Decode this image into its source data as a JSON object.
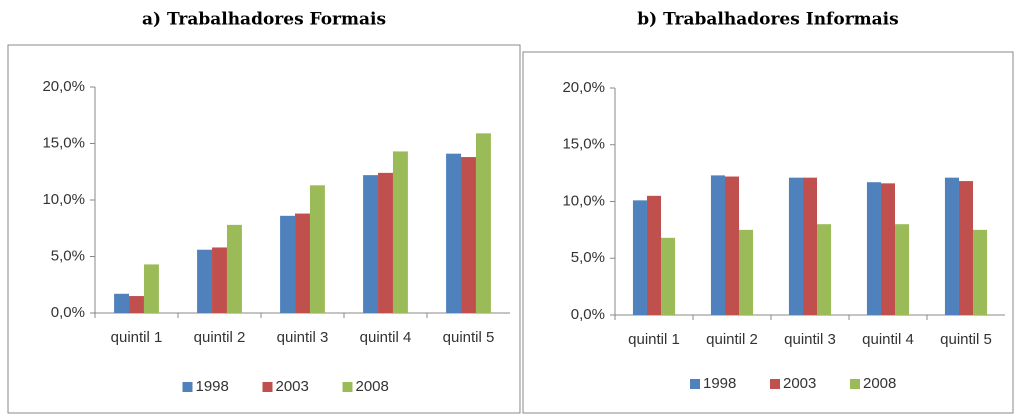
{
  "chart_data": [
    {
      "type": "bar",
      "title": "a) Trabalhadores Formais",
      "categories": [
        "quintil 1",
        "quintil 2",
        "quintil 3",
        "quintil 4",
        "quintil 5"
      ],
      "series": [
        {
          "name": "1998",
          "color": "#4f81bd",
          "values": [
            1.7,
            5.6,
            8.6,
            12.2,
            14.1
          ]
        },
        {
          "name": "2003",
          "color": "#c0504d",
          "values": [
            1.5,
            5.8,
            8.8,
            12.4,
            13.8
          ]
        },
        {
          "name": "2008",
          "color": "#9bbb59",
          "values": [
            4.3,
            7.8,
            11.3,
            14.3,
            15.9
          ]
        }
      ],
      "ylim": [
        0,
        20
      ],
      "yticks": [
        {
          "value": 0,
          "label": "0,0%"
        },
        {
          "value": 5,
          "label": "5,0%"
        },
        {
          "value": 10,
          "label": "10,0%"
        },
        {
          "value": 15,
          "label": "15,0%"
        },
        {
          "value": 20,
          "label": "20,0%"
        }
      ],
      "grid": false,
      "legend": "bottom"
    },
    {
      "type": "bar",
      "title": "b) Trabalhadores Informais",
      "categories": [
        "quintil 1",
        "quintil 2",
        "quintil 3",
        "quintil 4",
        "quintil 5"
      ],
      "series": [
        {
          "name": "1998",
          "color": "#4f81bd",
          "values": [
            10.1,
            12.3,
            12.1,
            11.7,
            12.1
          ]
        },
        {
          "name": "2003",
          "color": "#c0504d",
          "values": [
            10.5,
            12.2,
            12.1,
            11.6,
            11.8
          ]
        },
        {
          "name": "2008",
          "color": "#9bbb59",
          "values": [
            6.8,
            7.5,
            8.0,
            8.0,
            7.5
          ]
        }
      ],
      "ylim": [
        0,
        20
      ],
      "yticks": [
        {
          "value": 0,
          "label": "0,0%"
        },
        {
          "value": 5,
          "label": "5,0%"
        },
        {
          "value": 10,
          "label": "10,0%"
        },
        {
          "value": 15,
          "label": "15,0%"
        },
        {
          "value": 20,
          "label": "20,0%"
        }
      ],
      "grid": false,
      "legend": "bottom"
    }
  ]
}
